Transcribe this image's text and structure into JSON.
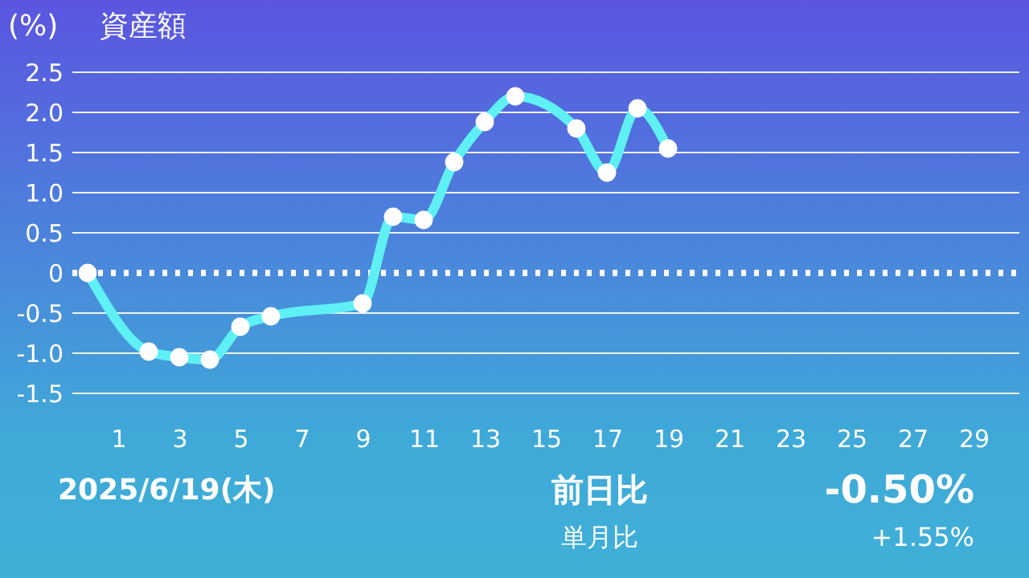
{
  "chart_data": {
    "type": "line",
    "title": "資産額",
    "ylabel": "(%)",
    "x": [
      0,
      2,
      3,
      4,
      5,
      6,
      9,
      10,
      11,
      12,
      13,
      14,
      16,
      17,
      18,
      19
    ],
    "series": [
      {
        "color": "#5ef0f5",
        "values": [
          0,
          -0.98,
          -1.05,
          -1.08,
          -0.67,
          -0.54,
          -0.38,
          0.7,
          0.66,
          1.38,
          1.88,
          2.2,
          1.8,
          1.25,
          2.05,
          1.55
        ]
      }
    ],
    "xlim": [
      -0.5,
      30.5
    ],
    "xticks": [
      1,
      3,
      5,
      7,
      9,
      11,
      13,
      15,
      17,
      19,
      21,
      23,
      25,
      27,
      29
    ],
    "ylim": [
      -1.5,
      2.5
    ],
    "yticks": [
      {
        "value": -1.5,
        "label": "-1.5"
      },
      {
        "value": -1,
        "label": "-1.0"
      },
      {
        "value": -0.5,
        "label": "-0.5"
      },
      0,
      0.5,
      {
        "value": 1,
        "label": "1.0"
      },
      1.5,
      {
        "value": 2,
        "label": "2.0"
      },
      2.5
    ],
    "grid": "y",
    "marker": "circle",
    "line_style": "solid",
    "ref_lines": [
      {
        "axis": "y",
        "value": 0,
        "color": "#ffffff",
        "line_style": "dotted"
      }
    ],
    "annotations": [
      "2025/6/19(木)",
      "前日比",
      "-0.50%",
      "単月比",
      "+1.55%"
    ]
  }
}
